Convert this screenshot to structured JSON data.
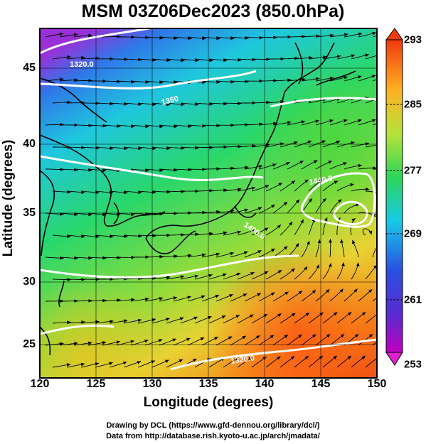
{
  "title": "MSM 03Z06Dec2023 (850.0hPa)",
  "axes": {
    "xlabel": "Longitude (degrees)",
    "ylabel": "Latitude  (degrees)",
    "x_ticks": [
      "120",
      "125",
      "130",
      "135",
      "140",
      "145",
      "150"
    ],
    "y_ticks": [
      "45",
      "40",
      "35",
      "30",
      "25"
    ],
    "x_range": [
      120,
      150
    ],
    "y_range": [
      22.4,
      47.6
    ]
  },
  "colorbar": {
    "ticks": [
      "293",
      "285",
      "277",
      "269",
      "261",
      "253"
    ],
    "range": [
      253,
      293
    ],
    "colors": [
      "#b000b0",
      "#2a33d0",
      "#17c9e8",
      "#2dd658",
      "#a8e23a",
      "#ffc020",
      "#f03a10"
    ]
  },
  "contour_labels": [
    "1320.0",
    "1360",
    "1440.0",
    "1400.0",
    "1320.0"
  ],
  "credits": {
    "line1": "Drawing by DCL (https://www.gfd-dennou.org/library/dcl/)",
    "line2": "Data from http://database.rish.kyoto-u.ac.jp/arch/jmadata/"
  }
}
